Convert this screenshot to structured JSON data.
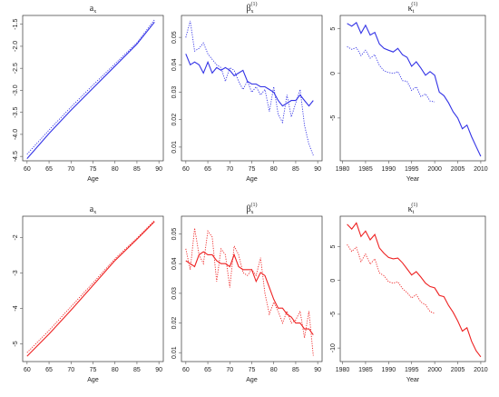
{
  "colors": {
    "blue": "#3333e6",
    "red": "#ee2222"
  },
  "chart_data": [
    {
      "type": "line",
      "color": "blue",
      "title": "a",
      "title_sub": "x",
      "title_sup": "",
      "xlabel": "Age",
      "ylabel": "",
      "xlim": [
        59,
        91
      ],
      "ylim": [
        -4.6,
        -1.3
      ],
      "xticks": [
        60,
        65,
        70,
        75,
        80,
        85,
        90
      ],
      "yticks": [
        -4.5,
        -4.0,
        -3.5,
        -3.0,
        -2.5,
        -2.0,
        -1.5
      ],
      "ytick_labels": [
        "-4.5",
        "-4.0",
        "-3.5",
        "-3.0",
        "-2.5",
        "-2.0",
        "-1.5"
      ],
      "series": [
        {
          "style": "solid",
          "x": [
            60,
            65,
            70,
            75,
            80,
            85,
            89
          ],
          "values": [
            -4.55,
            -3.98,
            -3.45,
            -2.95,
            -2.45,
            -1.95,
            -1.45
          ]
        },
        {
          "style": "dotted",
          "x": [
            60,
            65,
            70,
            75,
            80,
            85,
            89
          ],
          "values": [
            -4.45,
            -3.9,
            -3.38,
            -2.88,
            -2.4,
            -1.92,
            -1.4
          ]
        }
      ]
    },
    {
      "type": "line",
      "color": "blue",
      "title": "β",
      "title_sub": "x",
      "title_sup": "(1)",
      "xlabel": "Age",
      "ylabel": "",
      "xlim": [
        59,
        91
      ],
      "ylim": [
        0.005,
        0.058
      ],
      "xticks": [
        60,
        65,
        70,
        75,
        80,
        85,
        90
      ],
      "yticks": [
        0.01,
        0.02,
        0.03,
        0.04,
        0.05
      ],
      "ytick_labels": [
        "0.01",
        "0.02",
        "0.03",
        "0.04",
        "0.05"
      ],
      "series": [
        {
          "style": "solid",
          "x": [
            60,
            61,
            62,
            63,
            64,
            65,
            66,
            67,
            68,
            69,
            70,
            71,
            72,
            73,
            74,
            75,
            76,
            77,
            78,
            79,
            80,
            81,
            82,
            83,
            84,
            85,
            86,
            87,
            88,
            89
          ],
          "values": [
            0.044,
            0.04,
            0.041,
            0.04,
            0.037,
            0.041,
            0.037,
            0.039,
            0.038,
            0.039,
            0.038,
            0.036,
            0.037,
            0.038,
            0.034,
            0.033,
            0.033,
            0.032,
            0.032,
            0.031,
            0.03,
            0.027,
            0.025,
            0.026,
            0.027,
            0.027,
            0.029,
            0.027,
            0.025,
            0.027
          ]
        },
        {
          "style": "dotted",
          "x": [
            60,
            61,
            62,
            63,
            64,
            65,
            66,
            67,
            68,
            69,
            70,
            71,
            72,
            73,
            74,
            75,
            76,
            77,
            78,
            79,
            80,
            81,
            82,
            83,
            84,
            85,
            86,
            87,
            88,
            89
          ],
          "values": [
            0.05,
            0.056,
            0.045,
            0.046,
            0.048,
            0.044,
            0.042,
            0.04,
            0.039,
            0.034,
            0.039,
            0.038,
            0.034,
            0.031,
            0.034,
            0.03,
            0.032,
            0.029,
            0.031,
            0.023,
            0.032,
            0.022,
            0.019,
            0.029,
            0.021,
            0.026,
            0.031,
            0.018,
            0.011,
            0.007
          ]
        }
      ]
    },
    {
      "type": "line",
      "color": "blue",
      "title": "κ",
      "title_sub": "t",
      "title_sup": "(1)",
      "xlabel": "Year",
      "ylabel": "",
      "xlim": [
        1979.5,
        2011
      ],
      "ylim": [
        -9.8,
        6.5
      ],
      "xticks": [
        1980,
        1985,
        1990,
        1995,
        2000,
        2005,
        2010
      ],
      "yticks": [
        -5,
        0,
        5
      ],
      "ytick_labels": [
        "-5",
        "0",
        "5"
      ],
      "series": [
        {
          "style": "solid",
          "x": [
            1981,
            1982,
            1983,
            1984,
            1985,
            1986,
            1987,
            1988,
            1989,
            1990,
            1991,
            1992,
            1993,
            1994,
            1995,
            1996,
            1997,
            1998,
            1999,
            2000,
            2001,
            2002,
            2003,
            2004,
            2005,
            2006,
            2007,
            2008,
            2009,
            2010
          ],
          "values": [
            5.6,
            5.3,
            5.7,
            4.5,
            5.4,
            4.3,
            4.6,
            3.3,
            2.8,
            2.6,
            2.4,
            2.8,
            2.1,
            1.8,
            0.8,
            1.3,
            0.6,
            -0.2,
            0.2,
            -0.2,
            -2.1,
            -2.5,
            -3.3,
            -4.3,
            -5.0,
            -6.2,
            -5.8,
            -7.1,
            -8.2,
            -9.3
          ]
        },
        {
          "style": "dotted",
          "x": [
            1981,
            1982,
            1983,
            1984,
            1985,
            1986,
            1987,
            1988,
            1989,
            1990,
            1991,
            1992,
            1993,
            1994,
            1995,
            1996,
            1997,
            1998,
            1999,
            2000
          ],
          "values": [
            3.0,
            2.7,
            2.9,
            2.0,
            2.6,
            1.7,
            2.1,
            0.9,
            0.3,
            0.1,
            0.0,
            0.2,
            -0.8,
            -0.9,
            -1.9,
            -1.5,
            -2.6,
            -2.3,
            -3.1,
            -3.2
          ]
        }
      ]
    },
    {
      "type": "line",
      "color": "red",
      "title": "a",
      "title_sub": "x",
      "title_sup": "",
      "xlabel": "Age",
      "ylabel": "",
      "xlim": [
        59,
        91
      ],
      "ylim": [
        -5.5,
        -1.4
      ],
      "xticks": [
        60,
        65,
        70,
        75,
        80,
        85,
        90
      ],
      "yticks": [
        -5,
        -4,
        -3,
        -2
      ],
      "ytick_labels": [
        "-5",
        "-4",
        "-3",
        "-2"
      ],
      "series": [
        {
          "style": "solid",
          "x": [
            60,
            65,
            70,
            75,
            80,
            85,
            89
          ],
          "values": [
            -5.35,
            -4.72,
            -4.05,
            -3.35,
            -2.65,
            -2.05,
            -1.55
          ]
        },
        {
          "style": "dotted",
          "x": [
            60,
            65,
            70,
            75,
            80,
            85,
            89
          ],
          "values": [
            -5.25,
            -4.62,
            -3.95,
            -3.28,
            -2.6,
            -2.02,
            -1.52
          ]
        }
      ]
    },
    {
      "type": "line",
      "color": "red",
      "title": "β",
      "title_sub": "x",
      "title_sup": "(1)",
      "xlabel": "Age",
      "ylabel": "",
      "xlim": [
        59,
        91
      ],
      "ylim": [
        0.007,
        0.056
      ],
      "xticks": [
        60,
        65,
        70,
        75,
        80,
        85,
        90
      ],
      "yticks": [
        0.01,
        0.02,
        0.03,
        0.04,
        0.05
      ],
      "ytick_labels": [
        "0.01",
        "0.02",
        "0.03",
        "0.04",
        "0.05"
      ],
      "series": [
        {
          "style": "solid",
          "x": [
            60,
            61,
            62,
            63,
            64,
            65,
            66,
            67,
            68,
            69,
            70,
            71,
            72,
            73,
            74,
            75,
            76,
            77,
            78,
            79,
            80,
            81,
            82,
            83,
            84,
            85,
            86,
            87,
            88,
            89
          ],
          "values": [
            0.041,
            0.04,
            0.039,
            0.043,
            0.044,
            0.043,
            0.043,
            0.041,
            0.04,
            0.04,
            0.039,
            0.043,
            0.039,
            0.038,
            0.038,
            0.038,
            0.034,
            0.037,
            0.036,
            0.032,
            0.028,
            0.025,
            0.025,
            0.023,
            0.022,
            0.02,
            0.02,
            0.018,
            0.018,
            0.016
          ]
        },
        {
          "style": "dotted",
          "x": [
            60,
            61,
            62,
            63,
            64,
            65,
            66,
            67,
            68,
            69,
            70,
            71,
            72,
            73,
            74,
            75,
            76,
            77,
            78,
            79,
            80,
            81,
            82,
            83,
            84,
            85,
            86,
            87,
            88,
            89
          ],
          "values": [
            0.045,
            0.038,
            0.052,
            0.043,
            0.04,
            0.051,
            0.049,
            0.034,
            0.045,
            0.043,
            0.032,
            0.046,
            0.043,
            0.037,
            0.036,
            0.038,
            0.036,
            0.042,
            0.03,
            0.023,
            0.027,
            0.024,
            0.02,
            0.024,
            0.02,
            0.021,
            0.024,
            0.015,
            0.024,
            0.009
          ]
        }
      ]
    },
    {
      "type": "line",
      "color": "red",
      "title": "κ",
      "title_sub": "t",
      "title_sup": "(1)",
      "xlabel": "Year",
      "ylabel": "",
      "xlim": [
        1979.5,
        2011
      ],
      "ylim": [
        -12,
        9.5
      ],
      "xticks": [
        1980,
        1985,
        1990,
        1995,
        2000,
        2005,
        2010
      ],
      "yticks": [
        -10,
        -5,
        0,
        5
      ],
      "ytick_labels": [
        "-10",
        "-5",
        "0",
        "5"
      ],
      "series": [
        {
          "style": "solid",
          "x": [
            1981,
            1982,
            1983,
            1984,
            1985,
            1986,
            1987,
            1988,
            1989,
            1990,
            1991,
            1992,
            1993,
            1994,
            1995,
            1996,
            1997,
            1998,
            1999,
            2000,
            2001,
            2002,
            2003,
            2004,
            2005,
            2006,
            2007,
            2008,
            2009,
            2010
          ],
          "values": [
            8.3,
            7.6,
            8.5,
            6.5,
            7.3,
            6.0,
            6.8,
            4.8,
            4.0,
            3.4,
            3.2,
            3.3,
            2.6,
            1.7,
            0.8,
            1.3,
            0.5,
            -0.4,
            -0.9,
            -1.1,
            -2.2,
            -2.4,
            -3.7,
            -4.7,
            -6.0,
            -7.5,
            -7.0,
            -9.0,
            -10.4,
            -11.3
          ]
        },
        {
          "style": "dotted",
          "x": [
            1981,
            1982,
            1983,
            1984,
            1985,
            1986,
            1987,
            1988,
            1989,
            1990,
            1991,
            1992,
            1993,
            1994,
            1995,
            1996,
            1997,
            1998,
            1999,
            2000
          ],
          "values": [
            5.3,
            4.3,
            4.9,
            2.8,
            3.9,
            2.4,
            3.2,
            1.1,
            0.7,
            -0.2,
            -0.4,
            -0.2,
            -1.2,
            -1.8,
            -2.6,
            -2.1,
            -3.2,
            -3.6,
            -4.6,
            -4.9
          ]
        }
      ]
    }
  ]
}
